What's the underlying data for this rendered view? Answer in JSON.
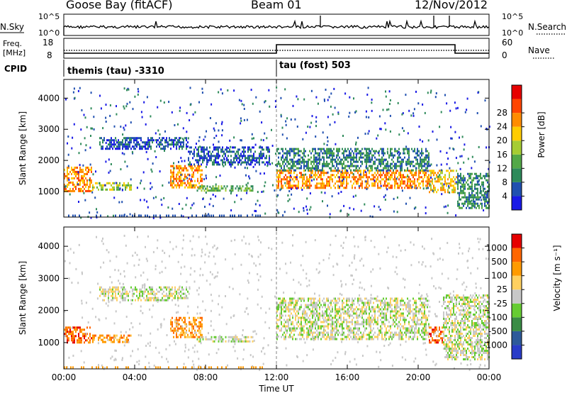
{
  "header": {
    "title": "Goose Bay (fitACF)",
    "beam": "Beam 01",
    "date": "12/Nov/2012"
  },
  "top_panels": {
    "nsky_label": "N.Sky",
    "nsearch_label": "N.Search",
    "noise_ticks_left": [
      "10^5",
      "10^0"
    ],
    "noise_ticks_right": [
      "10^5",
      "10^0"
    ],
    "freq_label_1": "Freq.",
    "freq_label_2": "[MHz]",
    "freq_ticks": [
      "18",
      "8"
    ],
    "nave_label": "Nave",
    "nave_ticks": [
      "60",
      "0"
    ],
    "cpid_label": "CPID",
    "cpid_left": "themis (tau) -3310",
    "cpid_right": "tau (fost) 503"
  },
  "chart_data": [
    {
      "type": "heatmap",
      "name": "power-panel",
      "ylabel": "Slant Range [km]",
      "xlabel": "",
      "y_ticks": [
        "1000",
        "2000",
        "3000",
        "4000"
      ],
      "ylim": [
        180,
        4600
      ],
      "colorbar_label": "Power [dB]",
      "colorbar_ticks": [
        "4",
        "8",
        "12",
        "16",
        "20",
        "24",
        "28"
      ],
      "colors": [
        "#1919e6",
        "#2050b0",
        "#2e8a5a",
        "#53a847",
        "#a6cc33",
        "#ffcc00",
        "#ff8c00",
        "#ff4500",
        "#e60000"
      ],
      "bands": [
        {
          "t": [
            0.0,
            1.6
          ],
          "range": [
            1000,
            1800
          ],
          "level": 6
        },
        {
          "t": [
            1.6,
            3.8
          ],
          "range": [
            1050,
            1300
          ],
          "level": 4
        },
        {
          "t": [
            2.0,
            7.0
          ],
          "range": [
            2350,
            2750
          ],
          "level": 1
        },
        {
          "t": [
            6.0,
            7.8
          ],
          "range": [
            1150,
            1850
          ],
          "level": 6
        },
        {
          "t": [
            7.5,
            10.7
          ],
          "range": [
            1050,
            1200
          ],
          "level": 3
        },
        {
          "t": [
            7.0,
            11.6
          ],
          "range": [
            1900,
            2450
          ],
          "level": 1
        },
        {
          "t": [
            12.0,
            20.6
          ],
          "range": [
            1100,
            1700
          ],
          "level": 6
        },
        {
          "t": [
            12.0,
            20.6
          ],
          "range": [
            1700,
            2400
          ],
          "level": 2
        },
        {
          "t": [
            20.6,
            22.2
          ],
          "range": [
            1000,
            1700
          ],
          "level": 5
        },
        {
          "t": [
            22.2,
            24.0
          ],
          "range": [
            500,
            1600
          ],
          "level": 2
        }
      ]
    },
    {
      "type": "heatmap",
      "name": "velocity-panel",
      "ylabel": "Slant Range [km]",
      "xlabel": "Time UT",
      "y_ticks": [
        "1000",
        "2000",
        "3000",
        "4000"
      ],
      "ylim": [
        180,
        4600
      ],
      "colorbar_label": "Velocity [m s⁻¹]",
      "colorbar_ticks": [
        "1000",
        "500",
        "100",
        "25",
        "-25",
        "-100",
        "-500",
        "-1000"
      ],
      "colors": [
        "#2a3cc8",
        "#2e5a9a",
        "#3a8c45",
        "#66cc33",
        "#c8c8c8",
        "#ffd060",
        "#ff9a00",
        "#ff6600",
        "#e60000"
      ],
      "x_ticks": [
        "00:00",
        "04:00",
        "08:00",
        "12:00",
        "16:00",
        "20:00",
        "00:00"
      ],
      "bands": [
        {
          "t": [
            0.0,
            1.6
          ],
          "range": [
            1000,
            1500
          ],
          "level": 7
        },
        {
          "t": [
            1.6,
            3.8
          ],
          "range": [
            1000,
            1250
          ],
          "level": 6
        },
        {
          "t": [
            2.0,
            7.0
          ],
          "range": [
            2350,
            2750
          ],
          "level": 4
        },
        {
          "t": [
            6.0,
            7.8
          ],
          "range": [
            1150,
            1800
          ],
          "level": 6
        },
        {
          "t": [
            7.5,
            10.7
          ],
          "range": [
            1050,
            1200
          ],
          "level": 4
        },
        {
          "t": [
            12.0,
            20.6
          ],
          "range": [
            1100,
            2400
          ],
          "level": 4
        },
        {
          "t": [
            20.6,
            21.4
          ],
          "range": [
            1000,
            1500
          ],
          "level": 7
        },
        {
          "t": [
            21.4,
            24.0
          ],
          "range": [
            500,
            2500
          ],
          "level": 4
        }
      ]
    }
  ]
}
